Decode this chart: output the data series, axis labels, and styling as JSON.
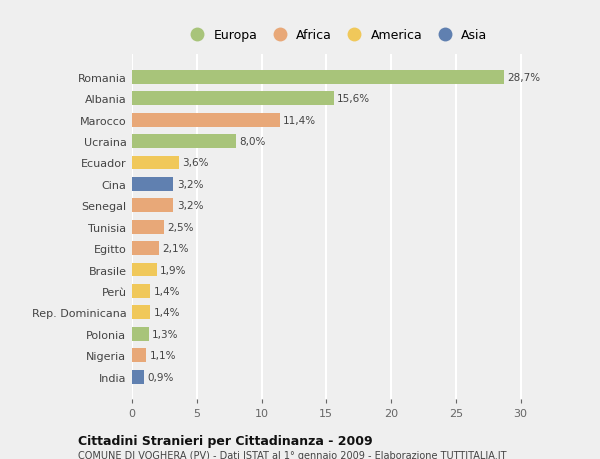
{
  "categories": [
    "Romania",
    "Albania",
    "Marocco",
    "Ucraina",
    "Ecuador",
    "Cina",
    "Senegal",
    "Tunisia",
    "Egitto",
    "Brasile",
    "Perù",
    "Rep. Dominicana",
    "Polonia",
    "Nigeria",
    "India"
  ],
  "values": [
    28.7,
    15.6,
    11.4,
    8.0,
    3.6,
    3.2,
    3.2,
    2.5,
    2.1,
    1.9,
    1.4,
    1.4,
    1.3,
    1.1,
    0.9
  ],
  "labels": [
    "28,7%",
    "15,6%",
    "11,4%",
    "8,0%",
    "3,6%",
    "3,2%",
    "3,2%",
    "2,5%",
    "2,1%",
    "1,9%",
    "1,4%",
    "1,4%",
    "1,3%",
    "1,1%",
    "0,9%"
  ],
  "colors": [
    "#a8c47a",
    "#a8c47a",
    "#e8a878",
    "#a8c47a",
    "#f0c85a",
    "#6080b0",
    "#e8a878",
    "#e8a878",
    "#e8a878",
    "#f0c85a",
    "#f0c85a",
    "#f0c85a",
    "#a8c47a",
    "#e8a878",
    "#6080b0"
  ],
  "legend_labels": [
    "Europa",
    "Africa",
    "America",
    "Asia"
  ],
  "legend_colors": [
    "#a8c47a",
    "#e8a878",
    "#f0c85a",
    "#6080b0"
  ],
  "title": "Cittadini Stranieri per Cittadinanza - 2009",
  "subtitle": "COMUNE DI VOGHERA (PV) - Dati ISTAT al 1° gennaio 2009 - Elaborazione TUTTITALIA.IT",
  "xlim": [
    0,
    31.5
  ],
  "xticks": [
    0,
    5,
    10,
    15,
    20,
    25,
    30
  ],
  "background_color": "#efefef",
  "plot_bg_color": "#efefef",
  "grid_color": "#ffffff",
  "bar_height": 0.65
}
